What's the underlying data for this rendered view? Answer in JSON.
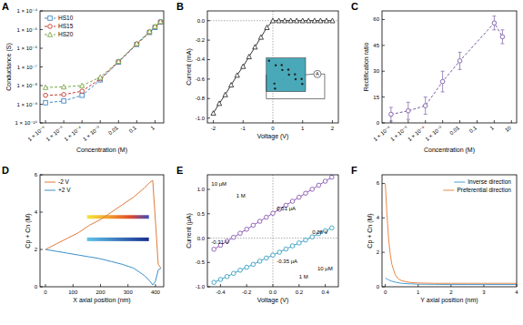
{
  "chart_data": [
    {
      "type": "line",
      "title": "A",
      "xlabel": "Concentration (M)",
      "ylabel": "Conductance (S)",
      "log": true,
      "legend": "upper left",
      "x": [
        1e-06,
        1e-05,
        0.0001,
        0.001,
        0.01,
        0.1,
        0.5,
        1,
        2
      ],
      "xlim": [
        5e-07,
        3
      ],
      "xticks": [
        {
          "value": 1e-06,
          "label": "1 × 10⁻⁶"
        },
        {
          "value": 1e-05,
          "label": "1 × 10⁻⁵"
        },
        {
          "value": 0.0001,
          "label": "1 × 10⁻⁴"
        },
        {
          "value": 0.001,
          "label": "1 × 10⁻³"
        },
        0.01,
        0.1,
        1
      ],
      "ylim": [
        1e-10,
        0.0001
      ],
      "yticks": [
        {
          "value": 1e-10,
          "label": "1 × 10⁻¹⁰"
        },
        {
          "value": 1e-09,
          "label": "1 × 10⁻⁹"
        },
        {
          "value": 1e-08,
          "label": "1 × 10⁻⁸"
        },
        {
          "value": 1e-07,
          "label": "1 × 10⁻⁷"
        },
        {
          "value": 1e-06,
          "label": "1 × 10⁻⁶"
        },
        {
          "value": 1e-05,
          "label": "1 × 10⁻⁵"
        },
        {
          "value": 0.0001,
          "label": "1 × 10⁻⁴"
        }
      ],
      "series": [
        {
          "name": "HS10",
          "color": "#3f86c6",
          "marker": "square",
          "line_style": "dashed",
          "values": [
            1.2e-09,
            1.5e-09,
            3e-09,
            2e-08,
            1.8e-07,
            1.6e-06,
            7e-06,
            1.3e-05,
            2.5e-05
          ]
        },
        {
          "name": "HS15",
          "color": "#c0392b",
          "marker": "circle",
          "line_style": "dashed",
          "values": [
            3e-09,
            3.3e-09,
            5e-09,
            2.3e-08,
            1.9e-07,
            1.7e-06,
            7.5e-06,
            1.4e-05,
            2.6e-05
          ]
        },
        {
          "name": "HS20",
          "color": "#7aa84a",
          "marker": "triangle",
          "line_style": "dashed",
          "values": [
            8e-09,
            8.5e-09,
            1e-08,
            2.8e-08,
            2e-07,
            1.8e-06,
            8e-06,
            1.5e-05,
            2.7e-05
          ]
        }
      ]
    },
    {
      "type": "line",
      "title": "B",
      "xlabel": "Voltage (V)",
      "ylabel": "Current (mA)",
      "annotations": [
        "A"
      ],
      "x": [
        -2,
        -1.8,
        -1.6,
        -1.4,
        -1.2,
        -1,
        -0.8,
        -0.6,
        -0.4,
        -0.2,
        0,
        0.2,
        0.4,
        0.6,
        0.8,
        1,
        1.2,
        1.4,
        1.6,
        1.8,
        2
      ],
      "xlim": [
        -2.2,
        2.2
      ],
      "xticks": [
        -2,
        -1,
        0,
        1,
        2
      ],
      "ylim": [
        -1.05,
        0.1
      ],
      "yticks": [
        {
          "value": 0,
          "label": "0.0"
        },
        -0.2,
        -0.4,
        -0.6,
        -0.8,
        {
          "value": -1,
          "label": "-1.0"
        }
      ],
      "series": [
        {
          "color": "#333333",
          "marker": "triangle",
          "line_style": "solid",
          "values": [
            -0.95,
            -0.85,
            -0.76,
            -0.66,
            -0.56,
            -0.47,
            -0.37,
            -0.27,
            -0.17,
            -0.07,
            0,
            0,
            0,
            0,
            0,
            0,
            0,
            0,
            0,
            0,
            0
          ]
        }
      ]
    },
    {
      "type": "line",
      "title": "C",
      "xlabel": "Concentration (M)",
      "ylabel": "Rectification ratio",
      "log": "x",
      "x": [
        1e-06,
        1e-05,
        0.0001,
        0.001,
        0.01,
        1,
        3
      ],
      "xlim": [
        3e-07,
        20
      ],
      "xticks": [
        {
          "value": 1e-06,
          "label": "1 × 10⁻⁶"
        },
        {
          "value": 1e-05,
          "label": "1 × 10⁻⁵"
        },
        {
          "value": 0.0001,
          "label": "1 × 10⁻⁴"
        },
        {
          "value": 0.001,
          "label": "1 × 10⁻³"
        },
        0.01,
        0.1,
        1,
        10
      ],
      "ylim": [
        0,
        65
      ],
      "yticks": [
        0,
        15,
        30,
        45,
        60
      ],
      "series": [
        {
          "color": "#7b5aa6",
          "marker": "circle",
          "line_style": "dashed",
          "values": [
            5,
            7,
            10,
            24,
            36,
            58,
            50
          ],
          "errors": [
            4,
            5,
            5,
            6,
            5,
            4,
            4
          ]
        }
      ]
    },
    {
      "type": "line",
      "title": "D",
      "xlabel": "X axial position (nm)",
      "ylabel": "Cp + Cn (M)",
      "legend": "upper left",
      "x": [
        0,
        40,
        80,
        120,
        160,
        200,
        240,
        280,
        320,
        360,
        380,
        390,
        400,
        410,
        420
      ],
      "xlim": [
        -20,
        430
      ],
      "xticks": [
        0,
        100,
        200,
        300,
        400
      ],
      "ylim": [
        0,
        6
      ],
      "yticks": [
        0,
        2,
        4,
        6
      ],
      "series": [
        {
          "name": "-2 V",
          "color": "#e07b39",
          "line_style": "solid",
          "values": [
            2.0,
            2.3,
            2.6,
            2.9,
            3.3,
            3.6,
            4.0,
            4.4,
            4.8,
            5.3,
            5.6,
            5.7,
            3.5,
            1.2,
            1.0
          ]
        },
        {
          "name": "+2 V",
          "color": "#3b8fc9",
          "line_style": "solid",
          "values": [
            2.0,
            1.9,
            1.8,
            1.7,
            1.6,
            1.5,
            1.35,
            1.2,
            1.0,
            0.6,
            0.3,
            0.1,
            0.3,
            0.9,
            1.0
          ]
        }
      ]
    },
    {
      "type": "line",
      "title": "E",
      "xlabel": "Voltage (V)",
      "ylabel": "Current (μA)",
      "annotations": [
        "0.51 μA",
        "-0.31 V",
        "0.28 V",
        "-0.35 μA",
        "10 μM",
        "1 M",
        "1 M",
        "10 μM"
      ],
      "x": [
        -0.45,
        -0.4,
        -0.35,
        -0.3,
        -0.25,
        -0.2,
        -0.15,
        -0.1,
        -0.05,
        0,
        0.05,
        0.1,
        0.15,
        0.2,
        0.25,
        0.3,
        0.35,
        0.4,
        0.45
      ],
      "xlim": [
        -0.5,
        0.5
      ],
      "xticks": [
        -0.4,
        -0.2,
        {
          "value": 0,
          "label": "0.0"
        },
        0.2,
        0.4
      ],
      "ylim": [
        -1,
        1.3
      ],
      "yticks": [
        {
          "value": -1,
          "label": "-1.0"
        },
        -0.5,
        {
          "value": 0,
          "label": "0.0"
        },
        0.5,
        {
          "value": 1,
          "label": "1.0"
        }
      ],
      "series": [
        {
          "color": "#8a5ab0",
          "marker": "circle",
          "line_style": "solid",
          "values": [
            -0.23,
            -0.148,
            -0.066,
            0.016,
            0.099,
            0.181,
            0.263,
            0.345,
            0.428,
            0.51,
            0.592,
            0.674,
            0.757,
            0.839,
            0.921,
            1.003,
            1.086,
            1.168,
            1.25
          ]
        },
        {
          "color": "#3a9ec2",
          "marker": "circle",
          "line_style": "solid",
          "values": [
            -0.91,
            -0.85,
            -0.79,
            -0.725,
            -0.66,
            -0.6,
            -0.54,
            -0.475,
            -0.41,
            -0.35,
            -0.29,
            -0.225,
            -0.16,
            -0.1,
            -0.04,
            0.025,
            0.09,
            0.15,
            0.21
          ]
        }
      ]
    },
    {
      "type": "line",
      "title": "F",
      "xlabel": "Y axial position (nm)",
      "ylabel": "Cp + Cn (M)",
      "legend": "upper right",
      "x": [
        0,
        0.05,
        0.1,
        0.15,
        0.2,
        0.3,
        0.4,
        0.5,
        0.75,
        1,
        1.5,
        2,
        2.5,
        3,
        3.5,
        4
      ],
      "xlim": [
        -0.1,
        4
      ],
      "xticks": [
        0,
        1,
        2,
        3,
        4
      ],
      "ylim": [
        0,
        6.5
      ],
      "yticks": [
        0,
        2,
        4,
        6
      ],
      "series": [
        {
          "name": "Inverse direction",
          "color": "#4a9fd0",
          "line_style": "solid",
          "values": [
            0.5,
            0.45,
            0.4,
            0.36,
            0.32,
            0.27,
            0.23,
            0.2,
            0.17,
            0.15,
            0.14,
            0.13,
            0.13,
            0.13,
            0.13,
            0.13
          ]
        },
        {
          "name": "Preferential direction",
          "color": "#e8884a",
          "line_style": "solid",
          "values": [
            6.0,
            4.2,
            2.8,
            1.9,
            1.3,
            0.7,
            0.45,
            0.35,
            0.25,
            0.22,
            0.2,
            0.2,
            0.2,
            0.2,
            0.2,
            0.2
          ]
        }
      ]
    }
  ]
}
